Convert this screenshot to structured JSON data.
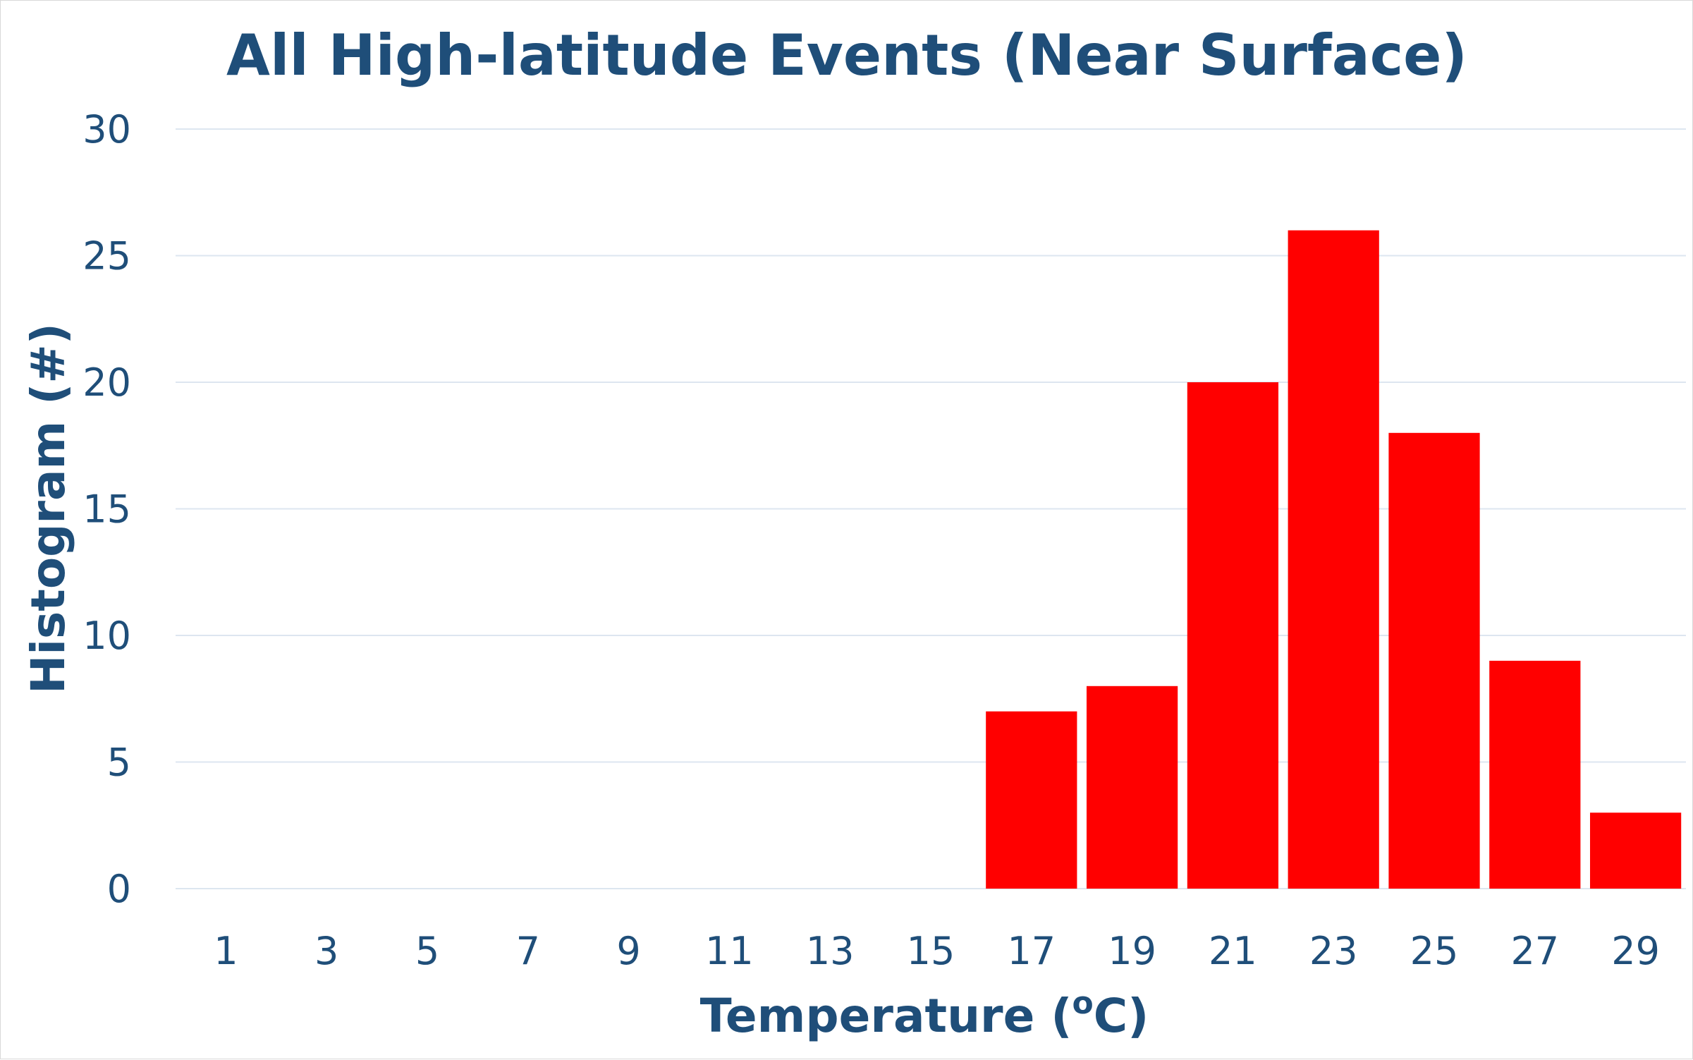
{
  "chart_data": {
    "type": "bar",
    "title": "All High-latitude Events (Near Surface)",
    "xlabel_main": "Temperature (",
    "xlabel_sup": "o",
    "xlabel_end": "C)",
    "ylabel": "Histogram (#)",
    "categories": [
      "1",
      "3",
      "5",
      "7",
      "9",
      "11",
      "13",
      "15",
      "17",
      "19",
      "21",
      "23",
      "25",
      "27",
      "29"
    ],
    "values": [
      0,
      0,
      0,
      0,
      0,
      0,
      0,
      0,
      7,
      8,
      20,
      26,
      18,
      9,
      3
    ],
    "ylim": [
      0,
      30
    ],
    "yticks": [
      0,
      5,
      10,
      15,
      20,
      25,
      30
    ],
    "grid": true,
    "legend": "none",
    "bar_color": "#ff0000",
    "text_color": "#1f4e79",
    "grid_color": "#dde6f0"
  }
}
